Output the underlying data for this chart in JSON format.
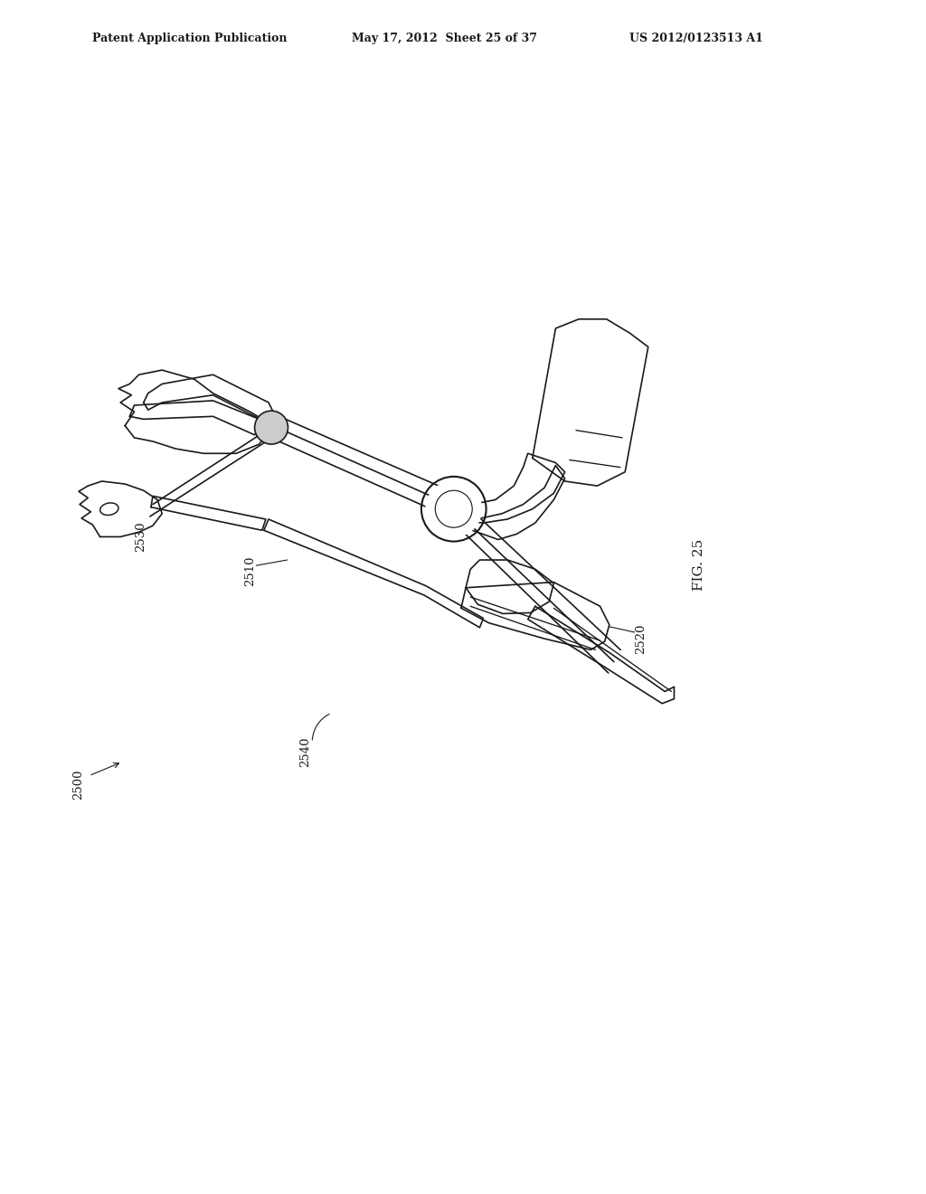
{
  "bg_color": "#ffffff",
  "header_left": "Patent Application Publication",
  "header_mid": "May 17, 2012  Sheet 25 of 37",
  "header_right": "US 2012/0123513 A1",
  "fig_label": "FIG. 25",
  "text_color": "#1a1a1a",
  "line_color": "#1a1a1a",
  "line_width": 1.2
}
